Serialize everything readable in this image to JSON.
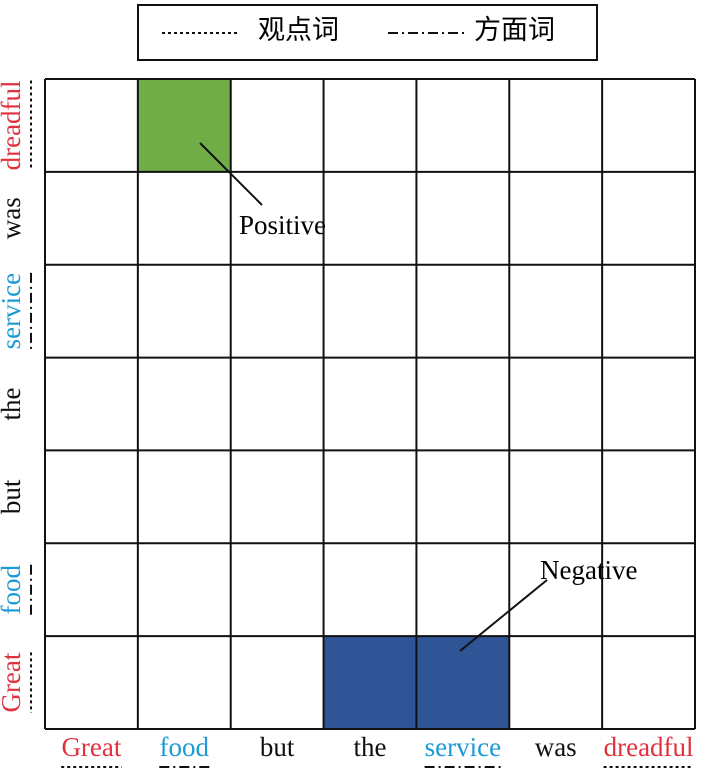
{
  "legend": [
    {
      "label": "观点词",
      "line": "dotted"
    },
    {
      "label": "方面词",
      "line": "dash-dot"
    }
  ],
  "words": [
    {
      "text": "Great",
      "color": "#e0313f",
      "line": "dotted"
    },
    {
      "text": "food",
      "color": "#1b9ad6",
      "line": "dash-dot"
    },
    {
      "text": "but",
      "color": "#111111"
    },
    {
      "text": "the",
      "color": "#111111"
    },
    {
      "text": "service",
      "color": "#1b9ad6",
      "line": "dash-dot"
    },
    {
      "text": "was",
      "color": "#111111"
    },
    {
      "text": "dreadful",
      "color": "#e0313f",
      "line": "dotted"
    }
  ],
  "highlights": [
    {
      "x": 1,
      "y": 6,
      "color": "#70ad47"
    },
    {
      "x": 3,
      "y": 0,
      "color": "#2f5597"
    },
    {
      "x": 4,
      "y": 0,
      "color": "#2f5597"
    }
  ],
  "annotations": [
    "Positive",
    "Negative"
  ]
}
